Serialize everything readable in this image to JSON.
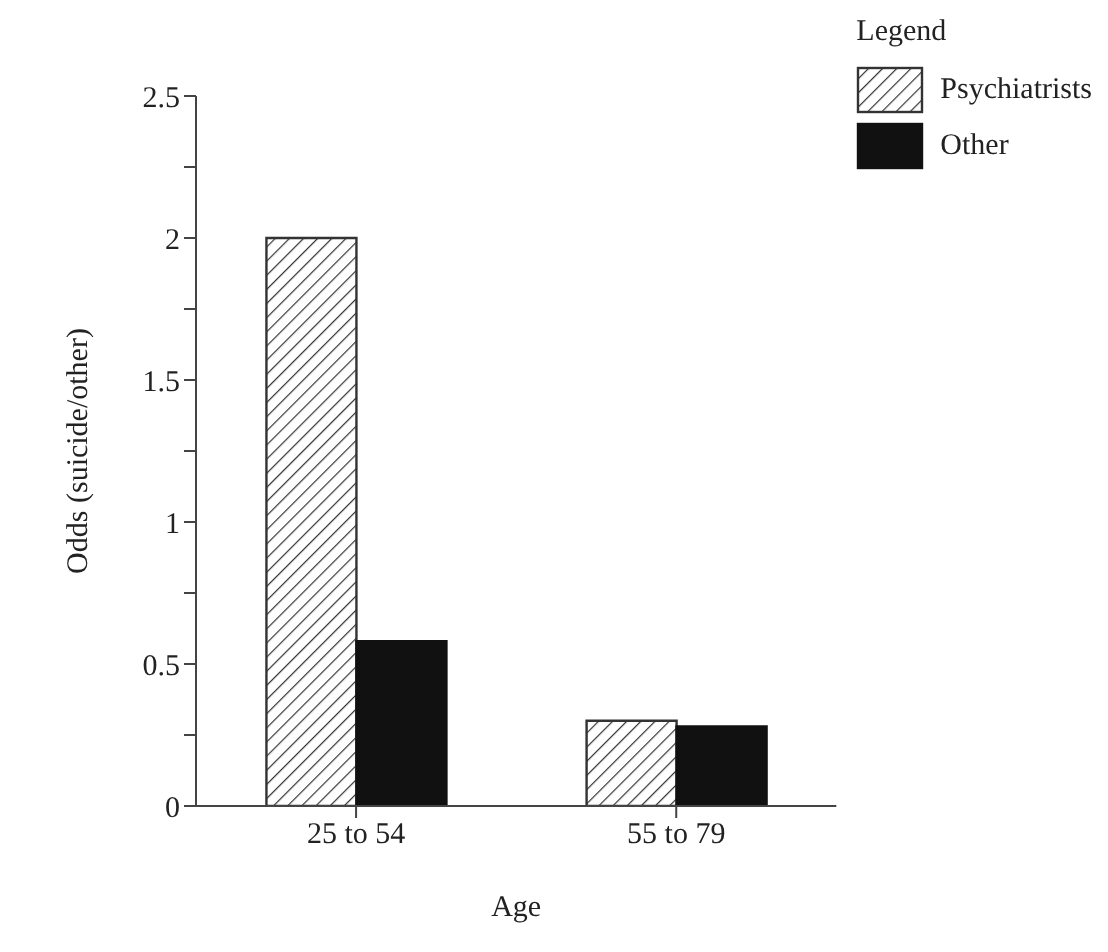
{
  "chart_data": {
    "type": "bar",
    "xlabel": "Age",
    "ylabel": "Odds (suicide/other)",
    "legend_title": "Legend",
    "legend": "top right",
    "categories": [
      "25 to 54",
      "55 to 79"
    ],
    "series": [
      {
        "name": "Psychiatrists",
        "color": "#333333",
        "values": [
          2.0,
          0.3
        ]
      },
      {
        "name": "Other",
        "color": "#111111",
        "values": [
          0.58,
          0.28
        ]
      }
    ],
    "ylim": [
      0,
      2.5
    ],
    "yticks": [
      0,
      {
        "value": 0.25,
        "label": null
      },
      0.5,
      {
        "value": 0.75,
        "label": null
      },
      1,
      {
        "value": 1.25,
        "label": null
      },
      1.5,
      {
        "value": 1.75,
        "label": null
      },
      2,
      {
        "value": 2.25,
        "label": null
      },
      2.5
    ],
    "grid": false
  }
}
